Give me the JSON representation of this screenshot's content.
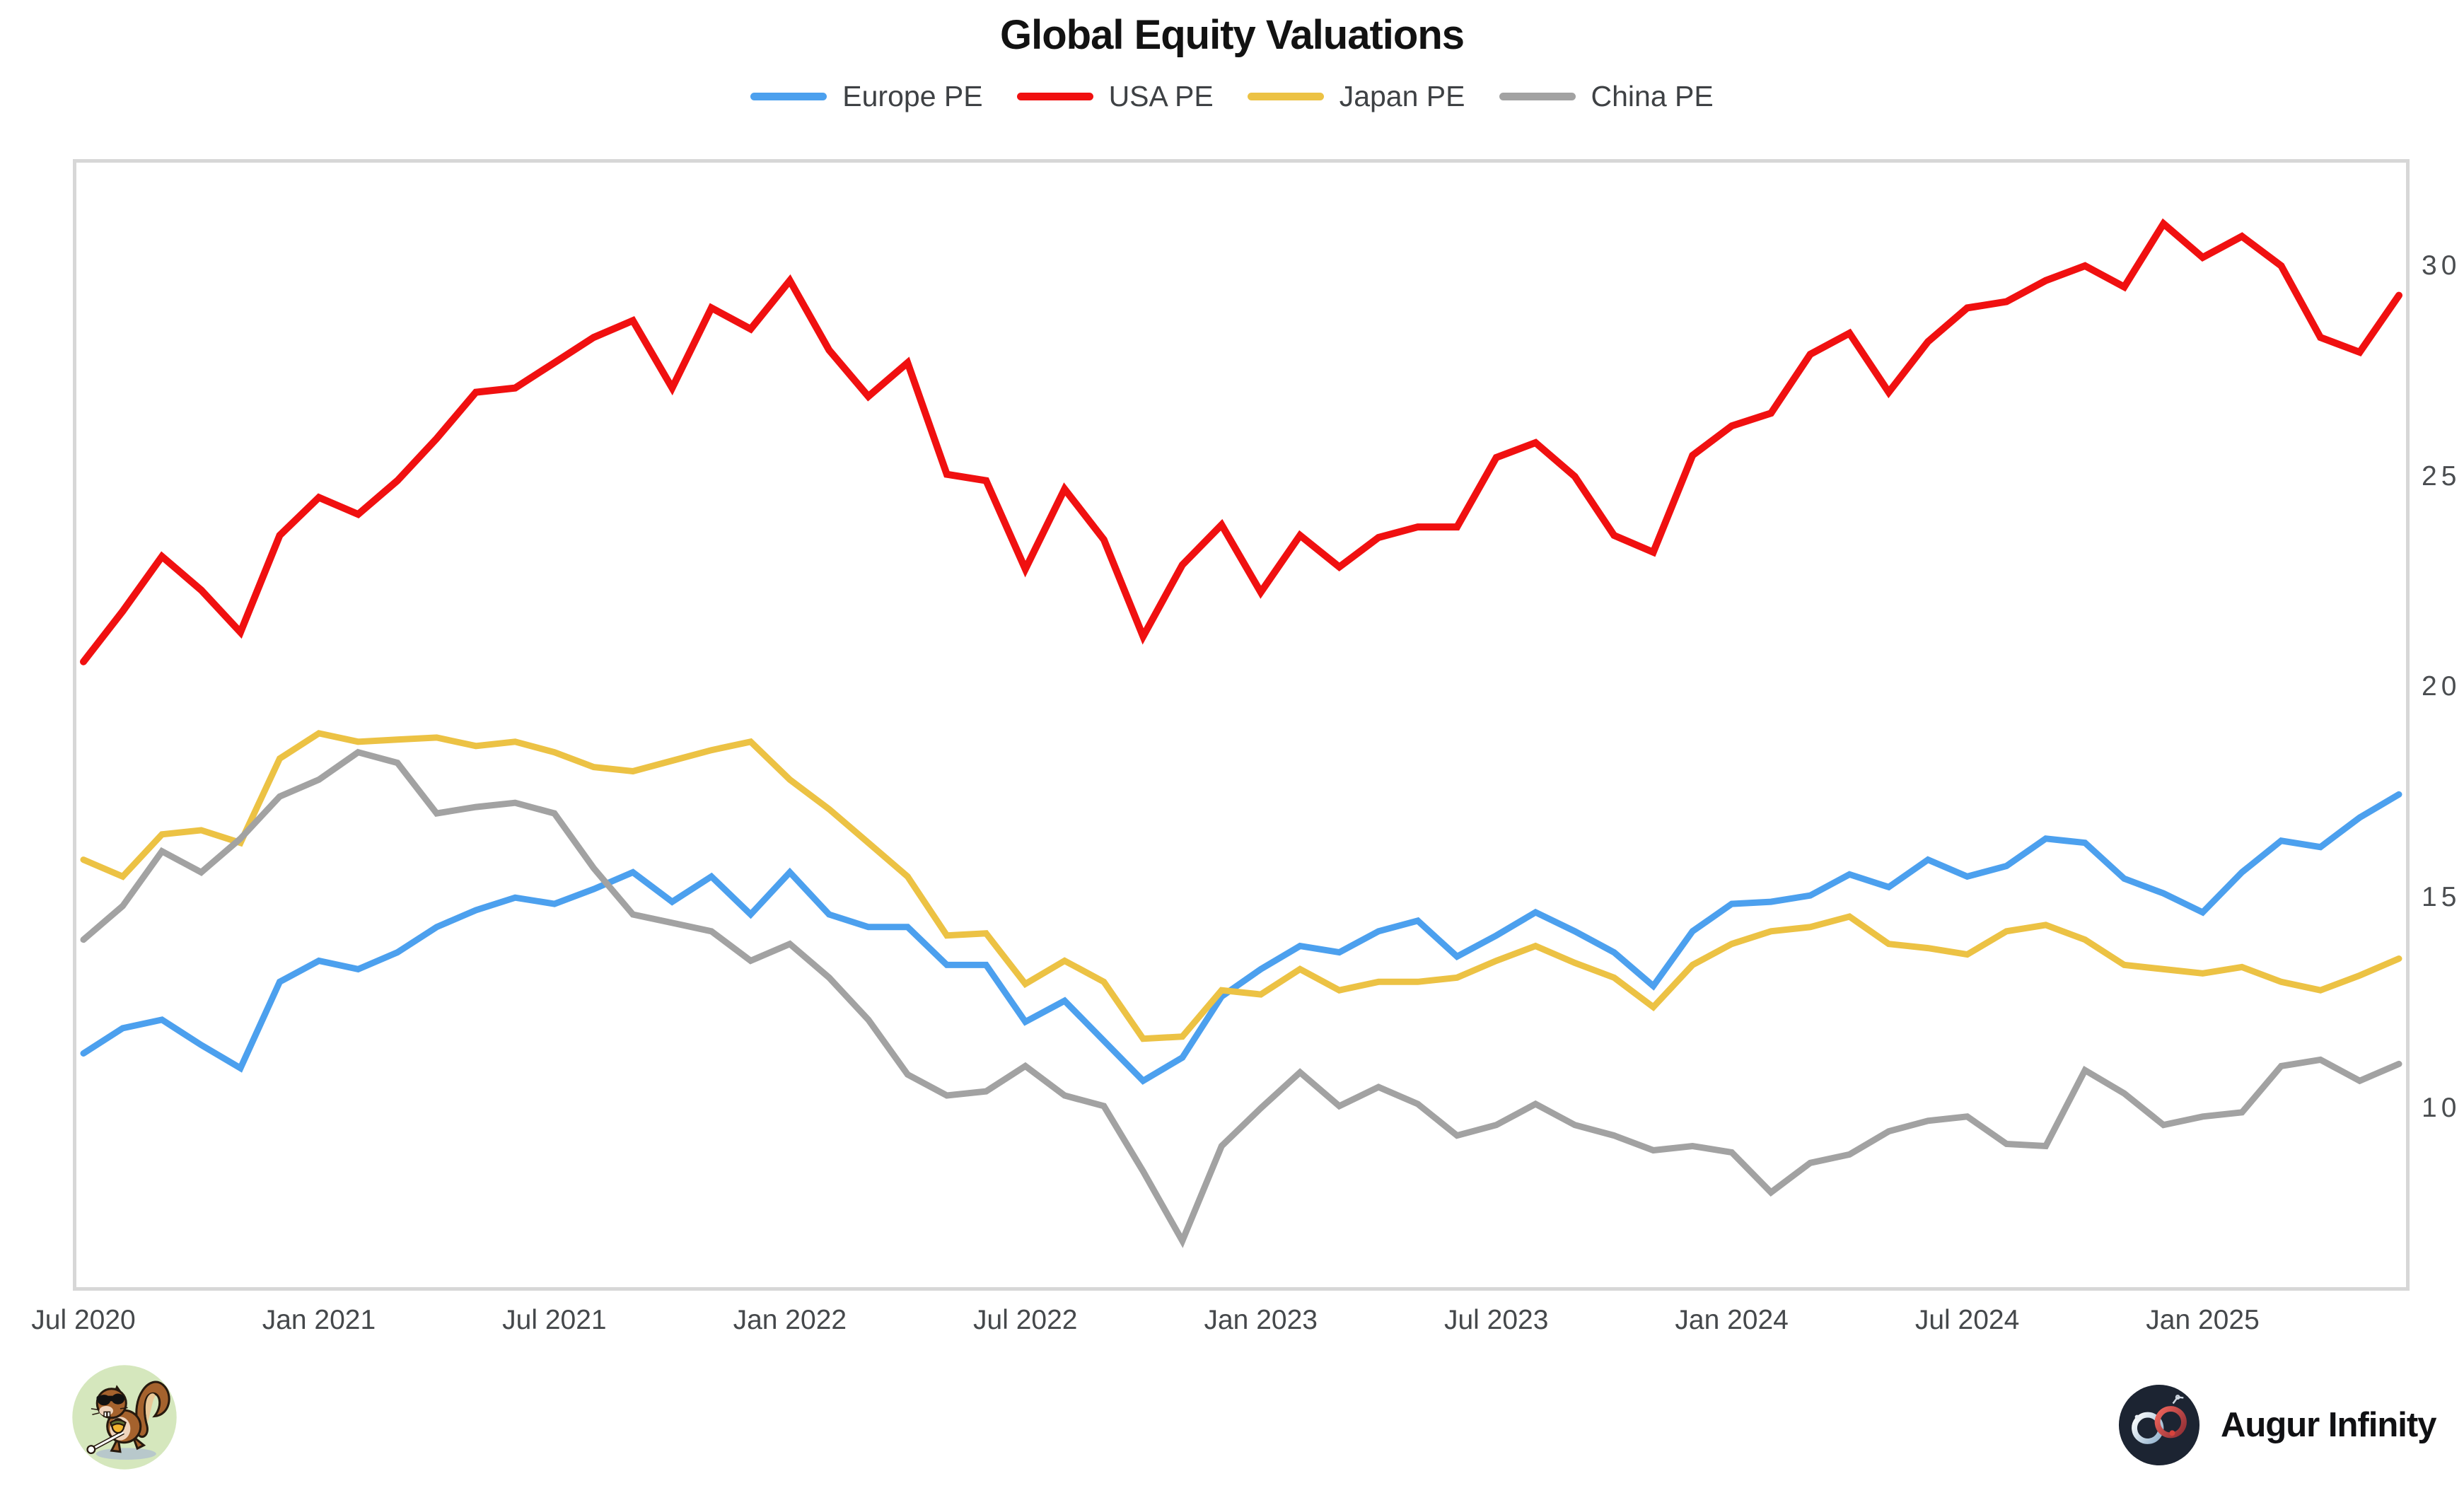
{
  "page": {
    "title": "Global Equity Valuations"
  },
  "branding": {
    "logo_text": "Augur Infinity"
  },
  "icons": {
    "squirrel_logo": "cartoon squirrel with sunglasses, white cane and acorn on light-green circle",
    "augur_logo": "infinity symbol on dark navy circle"
  },
  "chart_data": {
    "type": "line",
    "title": "Global Equity Valuations",
    "xlabel": "",
    "ylabel": "",
    "grid": false,
    "legend_position": "top",
    "y_axis_side": "right",
    "y_range": [
      5.75,
      32.45
    ],
    "y_ticks": [
      10,
      15,
      20,
      25,
      30
    ],
    "x_tick_positions": [
      0,
      6,
      12,
      18,
      24,
      30,
      36,
      42,
      48,
      54
    ],
    "x_tick_labels": [
      "Jul 2020",
      "Jan 2021",
      "Jul 2021",
      "Jan 2022",
      "Jul 2022",
      "Jan 2023",
      "Jul 2023",
      "Jan 2024",
      "Jul 2024",
      "Jan 2025"
    ],
    "x_labels": [
      "Jul 2020",
      "Aug 2020",
      "Sep 2020",
      "Oct 2020",
      "Nov 2020",
      "Dec 2020",
      "Jan 2021",
      "Feb 2021",
      "Mar 2021",
      "Apr 2021",
      "May 2021",
      "Jun 2021",
      "Jul 2021",
      "Aug 2021",
      "Sep 2021",
      "Oct 2021",
      "Nov 2021",
      "Dec 2021",
      "Jan 2022",
      "Feb 2022",
      "Mar 2022",
      "Apr 2022",
      "May 2022",
      "Jun 2022",
      "Jul 2022",
      "Aug 2022",
      "Sep 2022",
      "Oct 2022",
      "Nov 2022",
      "Dec 2022",
      "Jan 2023",
      "Feb 2023",
      "Mar 2023",
      "Apr 2023",
      "May 2023",
      "Jun 2023",
      "Jul 2023",
      "Aug 2023",
      "Sep 2023",
      "Oct 2023",
      "Nov 2023",
      "Dec 2023",
      "Jan 2024",
      "Feb 2024",
      "Mar 2024",
      "Apr 2024",
      "May 2024",
      "Jun 2024",
      "Jul 2024",
      "Aug 2024",
      "Sep 2024",
      "Oct 2024",
      "Nov 2024",
      "Dec 2024",
      "Jan 2025",
      "Feb 2025",
      "Mar 2025",
      "Apr 2025",
      "May 2025",
      "Jun 2025"
    ],
    "series": [
      {
        "name": "Europe PE",
        "color": "#4CA0EE",
        "values": [
          11.3,
          11.9,
          12.1,
          11.5,
          10.95,
          13.0,
          13.5,
          13.3,
          13.7,
          14.3,
          14.7,
          15.0,
          14.85,
          15.2,
          15.6,
          14.9,
          15.5,
          14.6,
          15.6,
          14.6,
          14.3,
          14.3,
          13.4,
          13.4,
          12.05,
          12.55,
          11.6,
          10.65,
          11.2,
          12.65,
          13.3,
          13.85,
          13.7,
          14.2,
          14.45,
          13.6,
          14.1,
          14.65,
          14.2,
          13.7,
          12.9,
          14.2,
          14.85,
          14.9,
          15.05,
          15.55,
          15.25,
          15.9,
          15.5,
          15.75,
          16.4,
          16.3,
          15.45,
          15.1,
          14.65,
          15.6,
          16.35,
          16.2,
          16.9,
          17.45
        ]
      },
      {
        "name": "USA PE",
        "color": "#F01010",
        "values": [
          20.6,
          21.8,
          23.1,
          22.3,
          21.3,
          23.6,
          24.5,
          24.1,
          24.9,
          25.9,
          27.0,
          27.1,
          27.7,
          28.3,
          28.7,
          27.1,
          29.0,
          28.5,
          29.65,
          28.0,
          26.9,
          27.7,
          25.05,
          24.9,
          22.8,
          24.7,
          23.5,
          21.2,
          22.9,
          23.85,
          22.25,
          23.6,
          22.85,
          23.55,
          23.8,
          23.8,
          25.45,
          25.8,
          25.0,
          23.6,
          23.2,
          25.5,
          26.2,
          26.5,
          27.9,
          28.4,
          27.0,
          28.2,
          29.0,
          29.15,
          29.65,
          30.0,
          29.5,
          31.0,
          30.2,
          30.7,
          30.0,
          28.3,
          27.95,
          29.3
        ]
      },
      {
        "name": "Japan PE",
        "color": "#ECC244",
        "values": [
          15.9,
          15.5,
          16.5,
          16.6,
          16.3,
          18.3,
          18.9,
          18.7,
          18.75,
          18.8,
          18.6,
          18.7,
          18.45,
          18.1,
          18.0,
          18.25,
          18.5,
          18.7,
          17.8,
          17.1,
          16.3,
          15.5,
          14.1,
          14.15,
          12.95,
          13.5,
          13.0,
          11.65,
          11.7,
          12.8,
          12.7,
          13.3,
          12.8,
          13.0,
          13.0,
          13.1,
          13.5,
          13.85,
          13.45,
          13.1,
          12.4,
          13.4,
          13.9,
          14.2,
          14.3,
          14.55,
          13.9,
          13.8,
          13.65,
          14.2,
          14.35,
          14.0,
          13.4,
          13.3,
          13.2,
          13.35,
          13.0,
          12.8,
          13.15,
          13.55
        ]
      },
      {
        "name": "China PE",
        "color": "#A2A2A2",
        "values": [
          14.0,
          14.8,
          16.1,
          15.6,
          16.4,
          17.4,
          17.8,
          18.45,
          18.2,
          17.0,
          17.15,
          17.25,
          17.0,
          15.7,
          14.6,
          14.4,
          14.2,
          13.5,
          13.9,
          13.1,
          12.1,
          10.8,
          10.3,
          10.4,
          11.0,
          10.3,
          10.05,
          8.5,
          6.85,
          9.1,
          10.0,
          10.85,
          10.05,
          10.5,
          10.1,
          9.35,
          9.6,
          10.1,
          9.6,
          9.35,
          9.0,
          9.1,
          8.95,
          8.0,
          8.7,
          8.9,
          9.45,
          9.7,
          9.8,
          9.15,
          9.1,
          10.9,
          10.35,
          9.6,
          9.8,
          9.9,
          11.0,
          11.15,
          10.65,
          11.05
        ]
      }
    ]
  }
}
